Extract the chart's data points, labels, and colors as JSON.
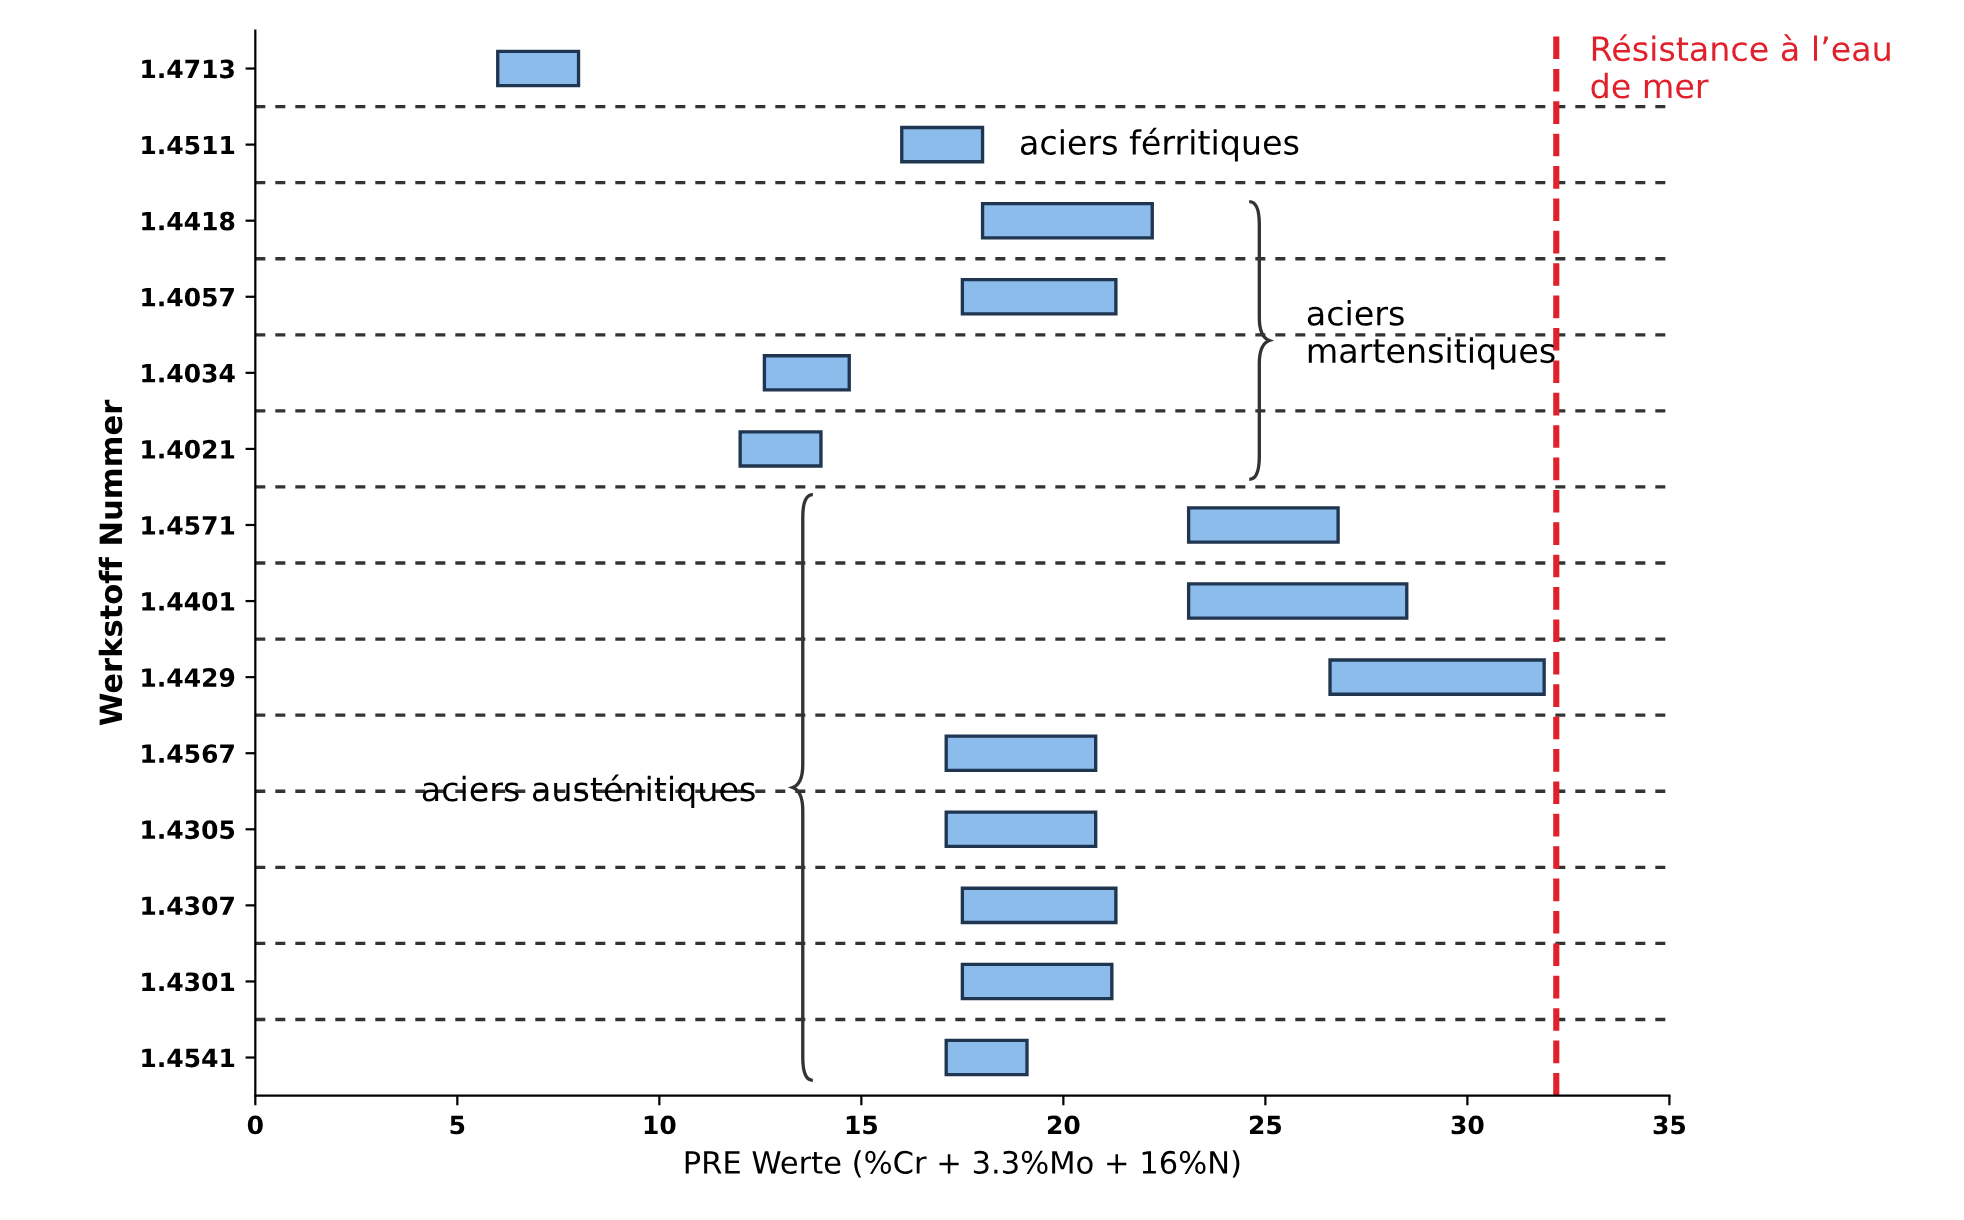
{
  "chart_data": {
    "type": "bar",
    "orientation": "horizontal",
    "xlabel": "PRE Werte (%Cr + 3.3%Mo + 16%N)",
    "ylabel": "Werkstoff Nummer",
    "categories": [
      "1.4713",
      "1.4511",
      "1.4418",
      "1.4057",
      "1.4034",
      "1.4021",
      "1.4571",
      "1.4401",
      "1.4429",
      "1.4567",
      "1.4305",
      "1.4307",
      "1.4301",
      "1.4541"
    ],
    "base": [
      6,
      16,
      18,
      17.5,
      12.6,
      12,
      23.1,
      23.1,
      26.6,
      17.1,
      17.1,
      17.5,
      17.5,
      17.1
    ],
    "values": [
      2,
      2,
      4.2,
      3.8,
      2.1,
      2,
      3.7,
      5.4,
      5.3,
      3.7,
      3.7,
      3.8,
      3.7,
      2
    ],
    "color": "#8cbcec",
    "xlim": [
      0,
      35
    ],
    "xticks": [
      0,
      5,
      10,
      15,
      20,
      25,
      30,
      35
    ],
    "grid": "y",
    "ref_lines": [
      {
        "axis": "x",
        "value": 32.2,
        "label": "Résistance à l’eau\nde mer",
        "color": "#e0202a",
        "line_style": "dashed"
      }
    ],
    "annotations": [
      "aciers férritiques",
      "aciers\nmartensitiques",
      "aciers austénitiques"
    ]
  }
}
